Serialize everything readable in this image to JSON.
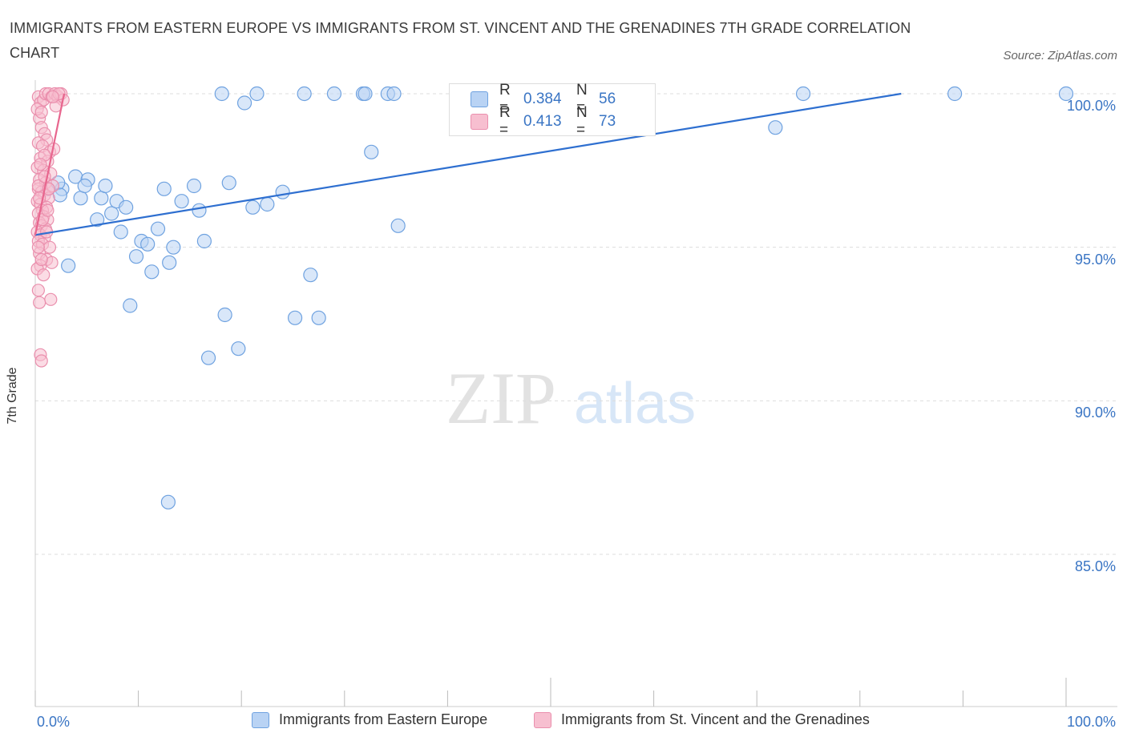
{
  "title": "IMMIGRANTS FROM EASTERN EUROPE VS IMMIGRANTS FROM ST. VINCENT AND THE GRENADINES 7TH GRADE CORRELATION CHART",
  "source": "Source: ZipAtlas.com",
  "watermark": {
    "zip": "ZIP",
    "atlas": "atlas"
  },
  "legend": {
    "series1": {
      "r_label": "R =",
      "r_value": "0.384",
      "n_label": "N =",
      "n_value": "56"
    },
    "series2": {
      "r_label": "R =",
      "r_value": "0.413",
      "n_label": "N =",
      "n_value": "73"
    }
  },
  "colors": {
    "blue_fill": "#b9d3f4",
    "blue_stroke": "#6fa2e0",
    "blue_line": "#2e6fd0",
    "pink_fill": "#f7bfd0",
    "pink_stroke": "#ea8fad",
    "pink_line": "#e8668e",
    "tick_text": "#3a75c4",
    "grid": "#dddddd"
  },
  "chart_data": {
    "type": "scatter",
    "xlabel": "",
    "ylabel": "7th Grade",
    "xlim": [
      0,
      100
    ],
    "ylim": [
      80,
      100
    ],
    "x_tick_labels": [
      "0.0%",
      "100.0%"
    ],
    "y_ticks": [
      100,
      95,
      90,
      85
    ],
    "y_tick_labels": [
      "100.0%",
      "95.0%",
      "90.0%",
      "85.0%"
    ],
    "grid": true,
    "series": [
      {
        "name": "Immigrants from Eastern Europe",
        "color": "#6fa2e0",
        "trend": {
          "x": [
            0,
            84
          ],
          "y": [
            95.4,
            100
          ]
        },
        "points": [
          [
            1.2,
            96.9
          ],
          [
            2.6,
            96.9
          ],
          [
            2.2,
            97.1
          ],
          [
            2.4,
            96.7
          ],
          [
            3.2,
            94.4
          ],
          [
            3.9,
            97.3
          ],
          [
            5.1,
            97.2
          ],
          [
            4.4,
            96.6
          ],
          [
            4.8,
            97.0
          ],
          [
            6.0,
            95.9
          ],
          [
            6.4,
            96.6
          ],
          [
            6.8,
            97.0
          ],
          [
            7.4,
            96.1
          ],
          [
            7.9,
            96.5
          ],
          [
            8.3,
            95.5
          ],
          [
            8.8,
            96.3
          ],
          [
            9.2,
            93.1
          ],
          [
            9.8,
            94.7
          ],
          [
            10.3,
            95.2
          ],
          [
            10.9,
            95.1
          ],
          [
            11.3,
            94.2
          ],
          [
            11.9,
            95.6
          ],
          [
            12.5,
            96.9
          ],
          [
            13.0,
            94.5
          ],
          [
            13.4,
            95.0
          ],
          [
            14.2,
            96.5
          ],
          [
            15.4,
            97.0
          ],
          [
            15.9,
            96.2
          ],
          [
            16.4,
            95.2
          ],
          [
            16.8,
            91.4
          ],
          [
            18.1,
            100.0
          ],
          [
            18.4,
            92.8
          ],
          [
            18.8,
            97.1
          ],
          [
            19.7,
            91.7
          ],
          [
            20.3,
            99.7
          ],
          [
            21.1,
            96.3
          ],
          [
            21.5,
            100.0
          ],
          [
            22.5,
            96.4
          ],
          [
            24.0,
            96.8
          ],
          [
            25.2,
            92.7
          ],
          [
            26.1,
            100.0
          ],
          [
            26.7,
            94.1
          ],
          [
            27.5,
            92.7
          ],
          [
            29.0,
            100.0
          ],
          [
            31.8,
            100.0
          ],
          [
            32.0,
            100.0
          ],
          [
            32.6,
            98.1
          ],
          [
            34.2,
            100.0
          ],
          [
            34.8,
            100.0
          ],
          [
            35.2,
            95.7
          ],
          [
            12.9,
            86.7
          ],
          [
            53.0,
            100.0
          ],
          [
            71.8,
            98.9
          ],
          [
            74.5,
            100.0
          ],
          [
            89.2,
            100.0
          ],
          [
            100.0,
            100.0
          ]
        ]
      },
      {
        "name": "Immigrants from St. Vincent and the Grenadines",
        "color": "#ea8fad",
        "trend": {
          "x": [
            0,
            2.8
          ],
          "y": [
            95.4,
            100
          ]
        },
        "points": [
          [
            0.3,
            99.9
          ],
          [
            0.5,
            99.7
          ],
          [
            0.8,
            99.8
          ],
          [
            1.0,
            100.0
          ],
          [
            1.3,
            100.0
          ],
          [
            1.6,
            99.9
          ],
          [
            1.9,
            100.0
          ],
          [
            2.2,
            99.9
          ],
          [
            2.5,
            100.0
          ],
          [
            2.7,
            99.8
          ],
          [
            0.4,
            99.2
          ],
          [
            0.6,
            98.9
          ],
          [
            0.9,
            98.7
          ],
          [
            1.1,
            98.5
          ],
          [
            0.3,
            98.4
          ],
          [
            0.7,
            98.3
          ],
          [
            1.4,
            98.1
          ],
          [
            0.5,
            97.9
          ],
          [
            1.2,
            97.8
          ],
          [
            0.2,
            97.6
          ],
          [
            0.8,
            97.5
          ],
          [
            1.5,
            97.4
          ],
          [
            0.4,
            97.2
          ],
          [
            1.0,
            97.1
          ],
          [
            1.7,
            97.0
          ],
          [
            0.3,
            96.9
          ],
          [
            0.6,
            96.8
          ],
          [
            0.9,
            96.7
          ],
          [
            1.3,
            96.6
          ],
          [
            0.2,
            96.5
          ],
          [
            0.5,
            96.4
          ],
          [
            1.1,
            96.3
          ],
          [
            0.7,
            96.2
          ],
          [
            0.3,
            96.1
          ],
          [
            0.8,
            96.0
          ],
          [
            1.2,
            95.9
          ],
          [
            0.4,
            95.8
          ],
          [
            0.6,
            95.7
          ],
          [
            1.0,
            95.6
          ],
          [
            0.2,
            95.5
          ],
          [
            0.5,
            95.4
          ],
          [
            0.9,
            95.3
          ],
          [
            0.3,
            95.2
          ],
          [
            0.7,
            95.1
          ],
          [
            1.4,
            95.0
          ],
          [
            0.4,
            94.8
          ],
          [
            1.1,
            94.6
          ],
          [
            1.6,
            94.5
          ],
          [
            0.5,
            94.4
          ],
          [
            0.2,
            94.3
          ],
          [
            0.8,
            94.1
          ],
          [
            0.3,
            93.6
          ],
          [
            1.5,
            93.3
          ],
          [
            0.4,
            93.2
          ],
          [
            0.5,
            91.5
          ],
          [
            0.6,
            91.3
          ],
          [
            0.2,
            99.5
          ],
          [
            0.6,
            99.4
          ],
          [
            1.8,
            98.2
          ],
          [
            0.3,
            97.0
          ],
          [
            0.9,
            97.3
          ],
          [
            1.3,
            96.9
          ],
          [
            0.4,
            96.6
          ],
          [
            0.7,
            95.9
          ],
          [
            1.1,
            95.5
          ],
          [
            0.3,
            95.0
          ],
          [
            0.6,
            94.6
          ],
          [
            2.0,
            99.6
          ],
          [
            2.3,
            100.0
          ],
          [
            1.7,
            99.9
          ],
          [
            0.9,
            98.0
          ],
          [
            0.5,
            97.7
          ],
          [
            1.2,
            96.2
          ]
        ]
      }
    ]
  }
}
